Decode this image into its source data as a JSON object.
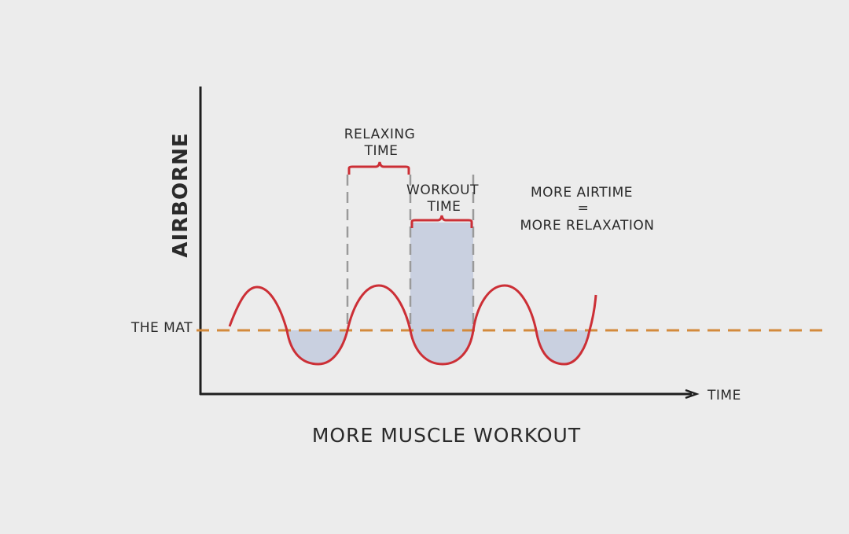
{
  "labels": {
    "y_axis": "AIRBORNE",
    "x_axis": "TIME",
    "mat": "THE MAT",
    "relaxing_line1": "RELAXING",
    "relaxing_line2": "TIME",
    "workout_line1": "WORKOUT",
    "workout_line2": "TIME",
    "note_line1": "MORE AIRTIME",
    "note_line2": "=",
    "note_line3": "MORE RELAXATION",
    "caption": "MORE MUSCLE WORKOUT"
  },
  "colors": {
    "background": "#ececec",
    "axis": "#1e1e1e",
    "wave": "#cc2f36",
    "mat_line": "#d38a3c",
    "shade": "#c9d0e0",
    "guide": "#9a9a9a",
    "bracket": "#cc2f36"
  }
}
